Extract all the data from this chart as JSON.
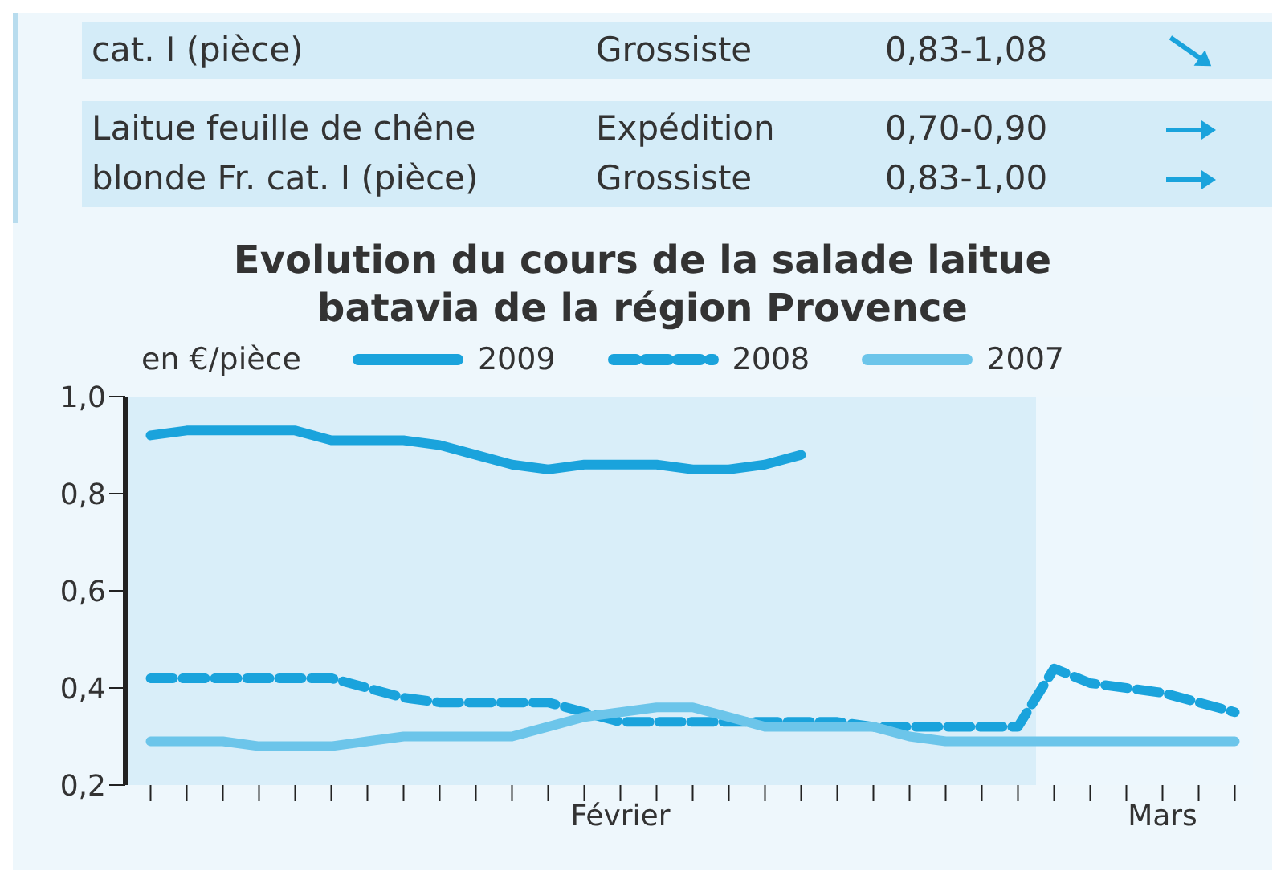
{
  "chart_data": {
    "type": "line",
    "title": "Evolution du cours de la salade laitue batavia de la région Provence",
    "ylabel": "en €/pièce",
    "annotations": [
      "cat. I (pièce)",
      "Grossiste",
      "0,83-1,08",
      "Laitue feuille de chêne blonde Fr. cat. I (pièce)",
      "Expédition",
      "0,70-0,90",
      "Grossiste",
      "0,83-1,00"
    ],
    "categories": [
      null,
      null,
      null,
      null,
      null,
      null,
      null,
      null,
      null,
      null,
      null,
      null,
      null,
      "Février",
      null,
      null,
      null,
      null,
      null,
      null,
      null,
      null,
      null,
      null,
      null,
      null,
      null,
      null,
      "Mars",
      null,
      null
    ],
    "series": [
      {
        "name": "2009",
        "color": "#1aa3dc",
        "line_style": "solid",
        "values": [
          0.92,
          0.93,
          0.93,
          0.93,
          0.93,
          0.91,
          0.91,
          0.91,
          0.9,
          0.88,
          0.86,
          0.85,
          0.86,
          0.86,
          0.86,
          0.85,
          0.85,
          0.86,
          0.88,
          null,
          null,
          null,
          null,
          null,
          null,
          null,
          null,
          null,
          null,
          null,
          null
        ]
      },
      {
        "name": "2008",
        "color": "#1aa3dc",
        "line_style": "dashed",
        "values": [
          0.42,
          0.42,
          0.42,
          0.42,
          0.42,
          0.42,
          0.4,
          0.38,
          0.37,
          0.37,
          0.37,
          0.37,
          0.35,
          0.33,
          0.33,
          0.33,
          0.33,
          0.33,
          0.33,
          0.33,
          0.32,
          0.32,
          0.32,
          0.32,
          0.32,
          0.44,
          0.41,
          0.4,
          0.39,
          0.37,
          0.35
        ]
      },
      {
        "name": "2007",
        "color": "#6cc5ea",
        "line_style": "solid",
        "values": [
          0.29,
          0.29,
          0.29,
          0.28,
          0.28,
          0.28,
          0.29,
          0.3,
          0.3,
          0.3,
          0.3,
          0.32,
          0.34,
          0.35,
          0.36,
          0.36,
          0.34,
          0.32,
          0.32,
          0.32,
          0.32,
          0.3,
          0.29,
          0.29,
          0.29,
          0.29,
          0.29,
          0.29,
          0.29,
          0.29,
          0.29
        ]
      }
    ],
    "ylim": [
      0.2,
      1.0
    ],
    "yticks": [
      {
        "value": 0.2,
        "label": "0,2"
      },
      {
        "value": 0.4,
        "label": "0,4"
      },
      {
        "value": 0.6,
        "label": "0,6"
      },
      {
        "value": 0.8,
        "label": "0,8"
      },
      {
        "value": 1.0,
        "label": "1,0"
      }
    ],
    "legend": "top"
  }
}
